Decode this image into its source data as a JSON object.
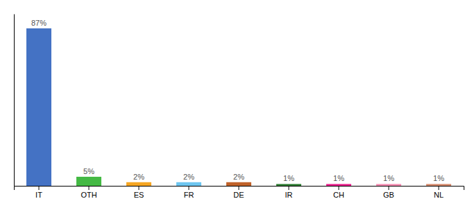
{
  "chart_data": {
    "type": "bar",
    "categories": [
      "IT",
      "OTH",
      "ES",
      "FR",
      "DE",
      "IR",
      "CH",
      "GB",
      "NL"
    ],
    "values": [
      87,
      5,
      2,
      2,
      2,
      1,
      1,
      1,
      1
    ],
    "value_labels": [
      "87%",
      "5%",
      "2%",
      "2%",
      "2%",
      "1%",
      "1%",
      "1%",
      "1%"
    ],
    "colors": [
      "#4472c4",
      "#44b944",
      "#f5a623",
      "#6ec6f0",
      "#c0622a",
      "#2e7d32",
      "#e91e8c",
      "#f48cb1",
      "#d4896a"
    ],
    "ylim": [
      0,
      95
    ],
    "data_labels": true,
    "tick_labels": "x",
    "grid": false
  }
}
